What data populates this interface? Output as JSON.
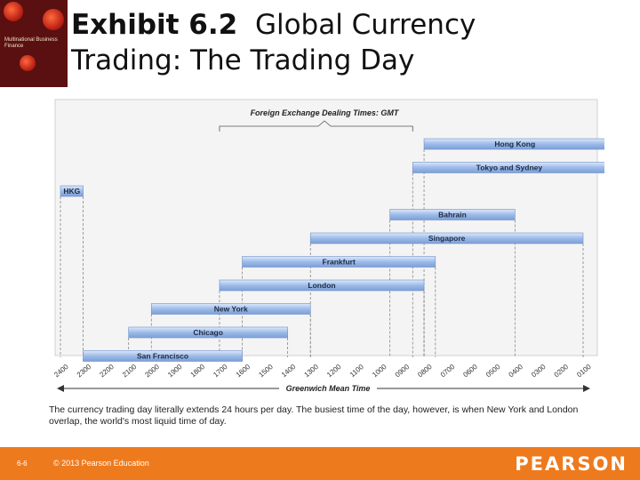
{
  "slide": {
    "title_bold": "Exhibit 6.2",
    "title_rest": "Global Currency",
    "title_line2": "Trading: The Trading Day",
    "cover_text": "Multinational Business Finance",
    "caption": "The currency trading day literally extends 24 hours per day. The busiest time of the day, however, is when New York and London overlap, the world's most liquid time of day."
  },
  "footer": {
    "page": "6-6",
    "copyright": "© 2013 Pearson Education",
    "brand": "PEARSON"
  },
  "chart_data": {
    "type": "bar",
    "orientation": "horizontal-range",
    "title": "Foreign Exchange Dealing Times: GMT",
    "xlabel": "Greenwich Mean Time",
    "x_ticks": [
      "2400",
      "2300",
      "2200",
      "2100",
      "2000",
      "1900",
      "1800",
      "1700",
      "1600",
      "1500",
      "1400",
      "1300",
      "1200",
      "1100",
      "1000",
      "0900",
      "0800",
      "0700",
      "0600",
      "0500",
      "0400",
      "0300",
      "0200",
      "0100"
    ],
    "x_axis_reversed": true,
    "bar_color": "#9dbbe8",
    "series": [
      {
        "name": "Hong Kong",
        "start_hour": 8,
        "end_hour": 0
      },
      {
        "name": "Tokyo and Sydney",
        "start_hour": 8.5,
        "end_hour": 0
      },
      {
        "name": "HKG",
        "start_hour": 24,
        "end_hour": 23
      },
      {
        "name": "Bahrain",
        "start_hour": 9.5,
        "end_hour": 4
      },
      {
        "name": "Singapore",
        "start_hour": 13,
        "end_hour": 1
      },
      {
        "name": "Frankfurt",
        "start_hour": 16,
        "end_hour": 7.5
      },
      {
        "name": "London",
        "start_hour": 17,
        "end_hour": 8
      },
      {
        "name": "New York",
        "start_hour": 20,
        "end_hour": 13
      },
      {
        "name": "Chicago",
        "start_hour": 21,
        "end_hour": 14
      },
      {
        "name": "San Francisco",
        "start_hour": 23,
        "end_hour": 16
      }
    ]
  }
}
